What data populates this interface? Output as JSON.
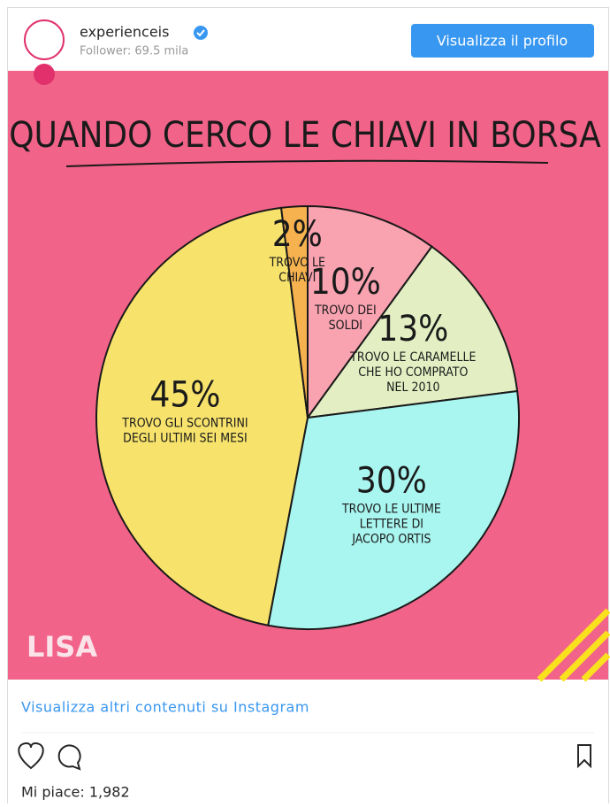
{
  "header": {
    "username": "experienceis",
    "followers": "Follower: 69.5 mila",
    "button": "Visualizza il profilo"
  },
  "chart_data": {
    "type": "pie",
    "title": "QUANDO CERCO LE CHIAVI IN BORSA",
    "categories": [
      [
        "TROVO DEI",
        "SOLDI"
      ],
      [
        "TROVO LE CARAMELLE",
        "CHE HO COMPRATO",
        "NEL 2010"
      ],
      [
        "TROVO LE ULTIME",
        "LETTERE DI",
        "JACOPO ORTIS"
      ],
      [
        "TROVO GLI SCONTRINI",
        "DEGLI ULTIMI SEI MESI"
      ],
      [
        "TROVO LE",
        "CHIAVI"
      ]
    ],
    "values": [
      10,
      13,
      30,
      45,
      2
    ],
    "value_labels": [
      "10%",
      "13%",
      "30%",
      "45%",
      "2%"
    ],
    "colors": [
      "#f9a3b1",
      "#e3efc3",
      "#a9f5ef",
      "#f7e36c",
      "#f6b24e"
    ],
    "logo": "LISA"
  },
  "footer": {
    "link": "Visualizza altri contenuti su Instagram",
    "likes": "Mi piace: 1,982"
  }
}
